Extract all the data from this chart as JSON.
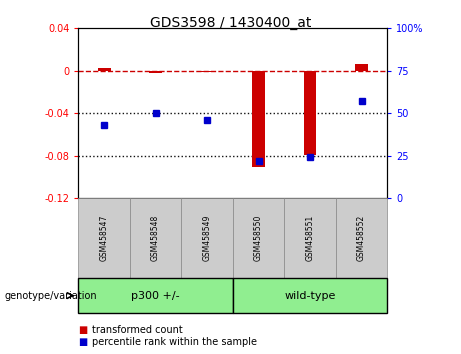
{
  "title": "GDS3598 / 1430400_at",
  "samples": [
    "GSM458547",
    "GSM458548",
    "GSM458549",
    "GSM458550",
    "GSM458551",
    "GSM458552"
  ],
  "transformed_count": [
    0.003,
    -0.002,
    -0.001,
    -0.091,
    -0.079,
    0.006
  ],
  "percentile_rank": [
    43,
    50,
    46,
    22,
    24,
    57
  ],
  "left_ylim": [
    -0.12,
    0.04
  ],
  "right_ylim": [
    0,
    100
  ],
  "left_yticks": [
    -0.12,
    -0.08,
    -0.04,
    0,
    0.04
  ],
  "right_yticks": [
    0,
    25,
    50,
    75,
    100
  ],
  "right_yticklabels": [
    "0",
    "25",
    "50",
    "75",
    "100%"
  ],
  "bar_color": "#CC0000",
  "scatter_color": "#0000CC",
  "hline_color": "#CC0000",
  "dotted_line_color": "#111111",
  "group_bg_color": "#90EE90",
  "sample_bg_color": "#cccccc",
  "groups_def": [
    {
      "label": "p300 +/-",
      "start": 0,
      "end": 3
    },
    {
      "label": "wild-type",
      "start": 3,
      "end": 6
    }
  ],
  "legend_items": [
    {
      "label": "transformed count",
      "color": "#CC0000"
    },
    {
      "label": "percentile rank within the sample",
      "color": "#0000CC"
    }
  ]
}
